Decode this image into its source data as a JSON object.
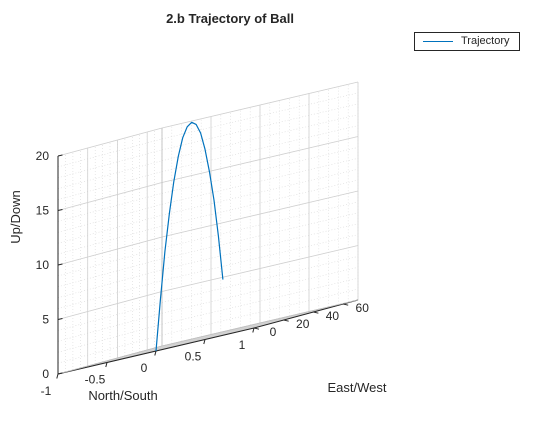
{
  "chart_data": {
    "type": "line3d",
    "title": "2.b Trajectory of Ball",
    "xlabel": "North/South",
    "ylabel": "East/West",
    "zlabel": "Up/Down",
    "xlim": [
      -1,
      1
    ],
    "ylim": [
      0,
      70
    ],
    "zlim": [
      0,
      20
    ],
    "xticks": [
      -1,
      -0.5,
      0,
      0.5,
      1
    ],
    "xtick_labels": [
      "-1",
      "-0.5",
      "0",
      "0.5",
      "1"
    ],
    "yticks": [
      0,
      20,
      40,
      60
    ],
    "ytick_labels": [
      "0",
      "20",
      "40",
      "60"
    ],
    "zticks": [
      0,
      5,
      10,
      15,
      20
    ],
    "ztick_labels": [
      "0",
      "5",
      "10",
      "15",
      "20"
    ],
    "grid": true,
    "minor_grid": true,
    "legend": {
      "position": "outside-top-right",
      "entries": [
        "Trajectory"
      ]
    },
    "series": [
      {
        "name": "Trajectory",
        "color": "#0072bd",
        "points": [
          {
            "x": 0,
            "y": 0,
            "z": 0
          },
          {
            "x": 0,
            "y": 3,
            "z": 4.7
          },
          {
            "x": 0,
            "y": 6,
            "z": 8.9
          },
          {
            "x": 0,
            "y": 9,
            "z": 12.3
          },
          {
            "x": 0,
            "y": 12,
            "z": 15.1
          },
          {
            "x": 0,
            "y": 15,
            "z": 17.3
          },
          {
            "x": 0,
            "y": 18,
            "z": 18.9
          },
          {
            "x": 0,
            "y": 21,
            "z": 19.8
          },
          {
            "x": 0,
            "y": 24,
            "z": 20.1
          },
          {
            "x": 0,
            "y": 27,
            "z": 19.8
          },
          {
            "x": 0,
            "y": 30,
            "z": 18.9
          },
          {
            "x": 0,
            "y": 33,
            "z": 17.3
          },
          {
            "x": 0,
            "y": 36,
            "z": 15.1
          },
          {
            "x": 0,
            "y": 39,
            "z": 12.4
          },
          {
            "x": 0,
            "y": 42,
            "z": 9.0
          },
          {
            "x": 0,
            "y": 45,
            "z": 4.9
          }
        ]
      }
    ]
  }
}
